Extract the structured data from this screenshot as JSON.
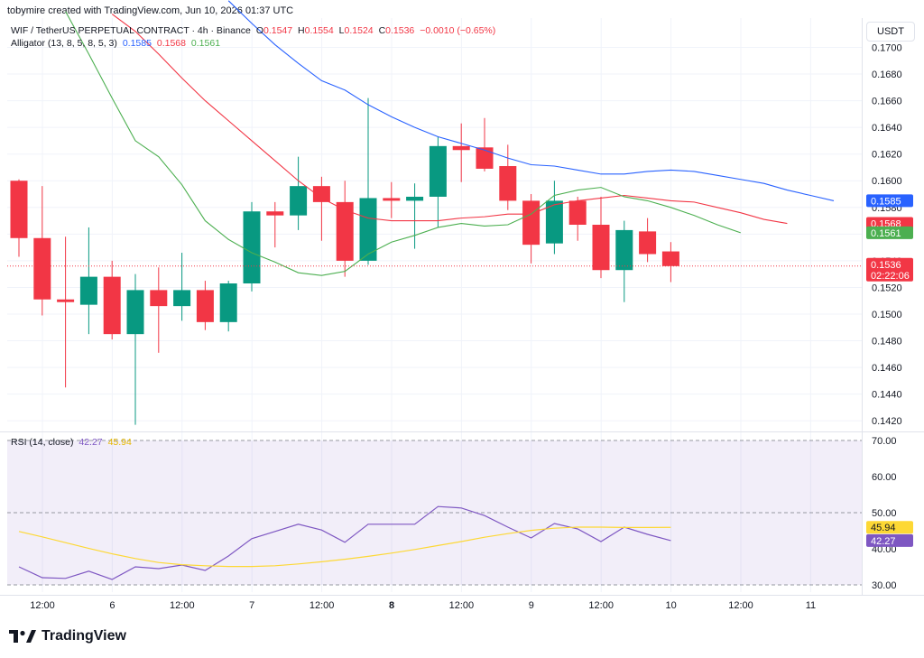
{
  "header": {
    "text": "tobymire created with TradingView.com, Jun 10, 2026 01:37 UTC"
  },
  "currency_button": "USDT",
  "legend": {
    "symbol": "WIF / TetherUS PERPETUAL CONTRACT · 4h · Binance",
    "o_label": "O",
    "o_value": "0.1547",
    "h_label": "H",
    "h_value": "0.1554",
    "l_label": "L",
    "l_value": "0.1524",
    "c_label": "C",
    "c_value": "0.1536",
    "change": "−0.0010 (−0.65%)",
    "alligator_label": "Alligator (13, 8, 5, 8, 5, 3)",
    "alligator_jaw": "0.1585",
    "alligator_teeth": "0.1568",
    "alligator_lips": "0.1561",
    "rsi_label": "RSI (14, close)",
    "rsi_value": "42.27",
    "rsi_ma_value": "45.94"
  },
  "brand": "TradingView",
  "colors": {
    "up": "#089981",
    "down": "#f23645",
    "jaw": "#2962ff",
    "teeth": "#f23645",
    "lips": "#4caf50",
    "rsi": "#7e57c2",
    "rsi_ma": "#fdd835"
  },
  "chart_data": [
    {
      "type": "candlestick",
      "title": "WIF / TetherUS PERPETUAL CONTRACT · 4h · Binance",
      "x_ticks": [
        "12:00",
        "6",
        "12:00",
        "7",
        "12:00",
        "8",
        "12:00",
        "9",
        "12:00",
        "10",
        "12:00",
        "11"
      ],
      "ylim": [
        0.1412,
        0.1722
      ],
      "y_ticks": [
        "0.1700",
        "0.1680",
        "0.1660",
        "0.1640",
        "0.1620",
        "0.1600",
        "0.1580",
        "0.1560",
        "0.1540",
        "0.1520",
        "0.1500",
        "0.1480",
        "0.1460",
        "0.1440",
        "0.1420"
      ],
      "candles": [
        {
          "o": 0.16,
          "h": 0.1601,
          "l": 0.1543,
          "c": 0.1557
        },
        {
          "o": 0.1557,
          "h": 0.1596,
          "l": 0.1499,
          "c": 0.1511
        },
        {
          "o": 0.1511,
          "h": 0.1558,
          "l": 0.1445,
          "c": 0.1509
        },
        {
          "o": 0.1507,
          "h": 0.1565,
          "l": 0.1485,
          "c": 0.1528
        },
        {
          "o": 0.1528,
          "h": 0.154,
          "l": 0.1481,
          "c": 0.1485
        },
        {
          "o": 0.1485,
          "h": 0.153,
          "l": 0.1417,
          "c": 0.1518
        },
        {
          "o": 0.1518,
          "h": 0.1535,
          "l": 0.1471,
          "c": 0.1506
        },
        {
          "o": 0.1506,
          "h": 0.1546,
          "l": 0.1495,
          "c": 0.1518
        },
        {
          "o": 0.1518,
          "h": 0.1525,
          "l": 0.1488,
          "c": 0.1494
        },
        {
          "o": 0.1494,
          "h": 0.1525,
          "l": 0.1487,
          "c": 0.1523
        },
        {
          "o": 0.1523,
          "h": 0.1584,
          "l": 0.1517,
          "c": 0.1577
        },
        {
          "o": 0.1577,
          "h": 0.1584,
          "l": 0.155,
          "c": 0.1574
        },
        {
          "o": 0.1574,
          "h": 0.1618,
          "l": 0.1563,
          "c": 0.1596
        },
        {
          "o": 0.1596,
          "h": 0.1603,
          "l": 0.1555,
          "c": 0.1584
        },
        {
          "o": 0.1584,
          "h": 0.16,
          "l": 0.1528,
          "c": 0.154
        },
        {
          "o": 0.154,
          "h": 0.1662,
          "l": 0.1537,
          "c": 0.1587
        },
        {
          "o": 0.1587,
          "h": 0.1599,
          "l": 0.1572,
          "c": 0.1585
        },
        {
          "o": 0.1585,
          "h": 0.1598,
          "l": 0.1549,
          "c": 0.1588
        },
        {
          "o": 0.1588,
          "h": 0.1633,
          "l": 0.1565,
          "c": 0.1626
        },
        {
          "o": 0.1626,
          "h": 0.1643,
          "l": 0.1599,
          "c": 0.1623
        },
        {
          "o": 0.1625,
          "h": 0.1647,
          "l": 0.1607,
          "c": 0.1609
        },
        {
          "o": 0.1611,
          "h": 0.1627,
          "l": 0.1578,
          "c": 0.1585
        },
        {
          "o": 0.1585,
          "h": 0.159,
          "l": 0.1538,
          "c": 0.1552
        },
        {
          "o": 0.1553,
          "h": 0.16,
          "l": 0.1545,
          "c": 0.1585
        },
        {
          "o": 0.1585,
          "h": 0.1588,
          "l": 0.1555,
          "c": 0.1567
        },
        {
          "o": 0.1567,
          "h": 0.1588,
          "l": 0.1527,
          "c": 0.1533
        },
        {
          "o": 0.1533,
          "h": 0.157,
          "l": 0.1509,
          "c": 0.1563
        },
        {
          "o": 0.1562,
          "h": 0.1572,
          "l": 0.1539,
          "c": 0.1545
        },
        {
          "o": 0.1547,
          "h": 0.1554,
          "l": 0.1524,
          "c": 0.1536
        }
      ],
      "alligator": {
        "jaw": [
          [
            9,
            0.1735
          ],
          [
            10,
            0.1718
          ],
          [
            11,
            0.1702
          ],
          [
            12,
            0.1688
          ],
          [
            13,
            0.1675
          ],
          [
            14,
            0.1668
          ],
          [
            15,
            0.1657
          ],
          [
            16,
            0.1648
          ],
          [
            17,
            0.164
          ],
          [
            18,
            0.1633
          ],
          [
            19,
            0.1628
          ],
          [
            20,
            0.1623
          ],
          [
            21,
            0.1617
          ],
          [
            22,
            0.1612
          ],
          [
            23,
            0.1611
          ],
          [
            24,
            0.1608
          ],
          [
            25,
            0.1605
          ],
          [
            26,
            0.1605
          ],
          [
            27,
            0.1607
          ],
          [
            28,
            0.1608
          ],
          [
            29,
            0.1607
          ],
          [
            30,
            0.1604
          ],
          [
            31,
            0.1601
          ],
          [
            32,
            0.1598
          ],
          [
            33,
            0.1593
          ],
          [
            34,
            0.1589
          ],
          [
            35,
            0.1585
          ]
        ],
        "teeth": [
          [
            4,
            0.1725
          ],
          [
            5,
            0.1712
          ],
          [
            6,
            0.1695
          ],
          [
            7,
            0.1677
          ],
          [
            8,
            0.166
          ],
          [
            9,
            0.1645
          ],
          [
            10,
            0.163
          ],
          [
            11,
            0.1615
          ],
          [
            12,
            0.16
          ],
          [
            13,
            0.1587
          ],
          [
            14,
            0.1578
          ],
          [
            15,
            0.1572
          ],
          [
            16,
            0.157
          ],
          [
            17,
            0.157
          ],
          [
            18,
            0.157
          ],
          [
            19,
            0.1572
          ],
          [
            20,
            0.1573
          ],
          [
            21,
            0.1575
          ],
          [
            22,
            0.1575
          ],
          [
            23,
            0.1582
          ],
          [
            24,
            0.1585
          ],
          [
            25,
            0.1587
          ],
          [
            26,
            0.1589
          ],
          [
            27,
            0.1587
          ],
          [
            28,
            0.1585
          ],
          [
            29,
            0.1584
          ],
          [
            30,
            0.158
          ],
          [
            31,
            0.1576
          ],
          [
            32,
            0.1571
          ],
          [
            33,
            0.1568
          ]
        ],
        "lips": [
          [
            2,
            0.1727
          ],
          [
            3,
            0.1695
          ],
          [
            4,
            0.1662
          ],
          [
            5,
            0.163
          ],
          [
            6,
            0.1618
          ],
          [
            7,
            0.1597
          ],
          [
            8,
            0.157
          ],
          [
            9,
            0.1556
          ],
          [
            10,
            0.1546
          ],
          [
            11,
            0.1539
          ],
          [
            12,
            0.1531
          ],
          [
            13,
            0.1529
          ],
          [
            14,
            0.1532
          ],
          [
            15,
            0.1545
          ],
          [
            16,
            0.1554
          ],
          [
            17,
            0.1559
          ],
          [
            18,
            0.1565
          ],
          [
            19,
            0.1568
          ],
          [
            20,
            0.1566
          ],
          [
            21,
            0.1567
          ],
          [
            22,
            0.1575
          ],
          [
            23,
            0.1589
          ],
          [
            24,
            0.1593
          ],
          [
            25,
            0.1595
          ],
          [
            26,
            0.1588
          ],
          [
            27,
            0.1585
          ],
          [
            28,
            0.158
          ],
          [
            29,
            0.1574
          ],
          [
            30,
            0.1567
          ],
          [
            31,
            0.1561
          ]
        ]
      },
      "last_price": {
        "value": "0.1536",
        "countdown": "02:22:06"
      }
    },
    {
      "type": "line",
      "title": "RSI (14, close)",
      "ylim": [
        28,
        72
      ],
      "y_ticks": [
        "70.00",
        "60.00",
        "50.00",
        "40.00",
        "30.00"
      ],
      "band": [
        30,
        70
      ],
      "midline": 50,
      "series": [
        {
          "name": "RSI",
          "values": [
            35,
            32,
            31.8,
            33.8,
            31.5,
            35,
            34.5,
            35.5,
            34,
            38,
            42.8,
            44.8,
            46.8,
            45.2,
            41.8,
            46.8,
            46.8,
            46.8,
            51.7,
            51.3,
            49.2,
            46,
            43,
            47,
            45.5,
            42,
            46,
            44,
            42.27
          ]
        },
        {
          "name": "RSI-based MA",
          "values": [
            44.8,
            43.3,
            41.7,
            40.1,
            38.6,
            37.3,
            36.2,
            35.6,
            35.3,
            35.1,
            35.1,
            35.3,
            35.8,
            36.4,
            37.1,
            37.9,
            38.8,
            39.8,
            40.9,
            42.0,
            43.2,
            44.2,
            45.1,
            45.7,
            46.0,
            46.0,
            45.9,
            45.9,
            45.94
          ]
        }
      ]
    }
  ]
}
